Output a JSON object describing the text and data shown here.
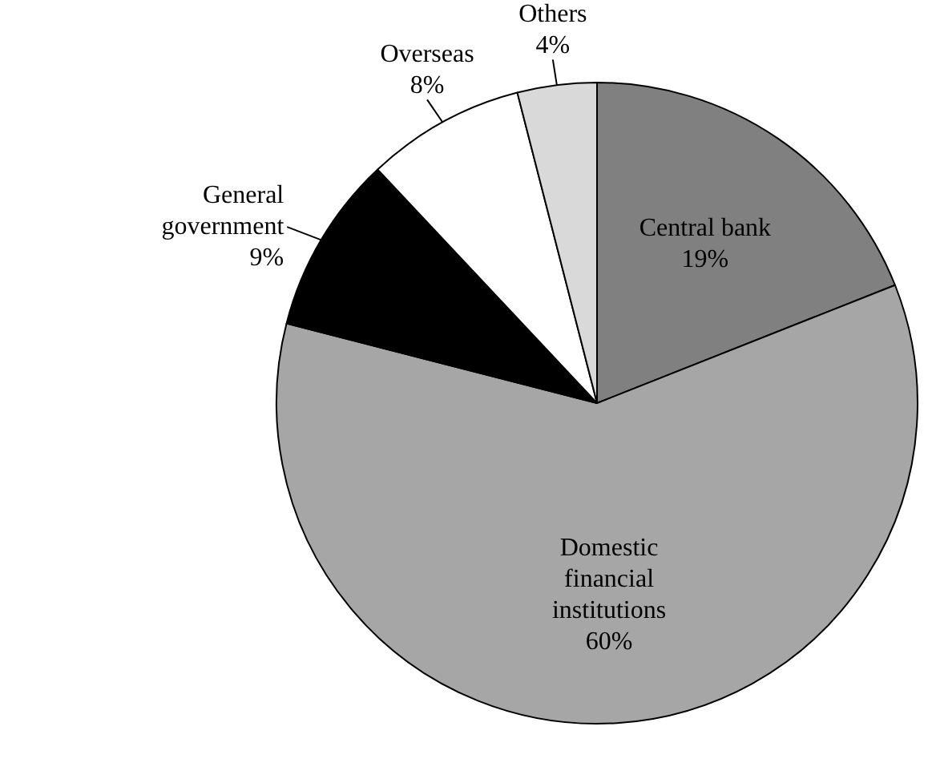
{
  "chart_data": {
    "type": "pie",
    "categories": [
      "Central bank",
      "Domestic financial institutions",
      "General government",
      "Overseas",
      "Others"
    ],
    "values": [
      19,
      60,
      9,
      8,
      4
    ],
    "colors": [
      "#808080",
      "#a6a6a6",
      "#000000",
      "#ffffff",
      "#d9d9d9"
    ],
    "value_labels": [
      "19%",
      "60%",
      "9%",
      "8%",
      "4%"
    ]
  }
}
